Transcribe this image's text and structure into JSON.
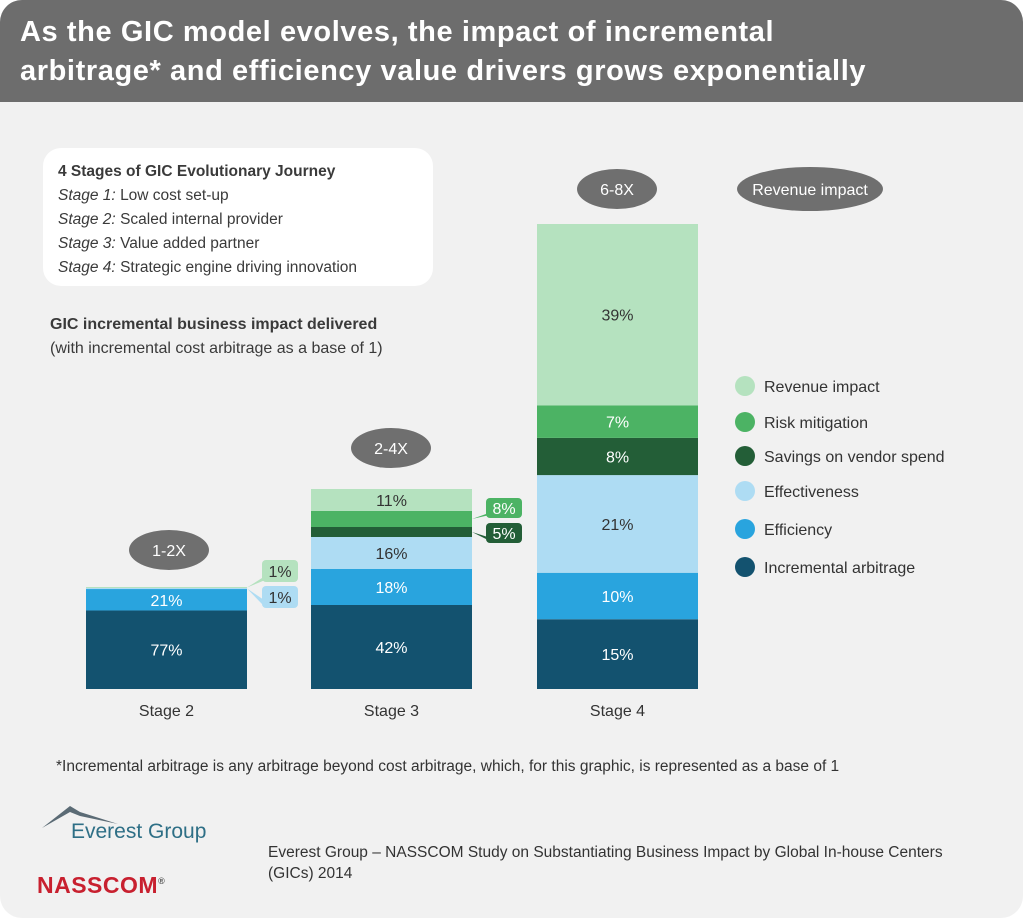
{
  "title": {
    "line1": "As the GIC model evolves, the impact of incremental",
    "line2": "arbitrage* and efficiency value drivers grows exponentially"
  },
  "stages_box": {
    "title": "4 Stages of GIC Evolutionary Journey",
    "items": [
      {
        "stage": "Stage 1:",
        "text": "Low cost set-up"
      },
      {
        "stage": "Stage 2:",
        "text": "Scaled internal provider"
      },
      {
        "stage": "Stage 3:",
        "text": "Value added partner"
      },
      {
        "stage": "Stage 4:",
        "text": "Strategic engine driving innovation"
      }
    ]
  },
  "subtitle": "GIC incremental business impact delivered",
  "subtitle_note": "(with incremental cost arbitrage as a base of 1)",
  "chart_data": {
    "type": "bar",
    "stacked": true,
    "categories": [
      "Stage 2",
      "Stage 3",
      "Stage 4"
    ],
    "multipliers": [
      "1-2X",
      "2-4X",
      "6-8X"
    ],
    "series": [
      {
        "name": "Incremental arbitrage",
        "color": "#13526f",
        "values": [
          77,
          42,
          15
        ],
        "labels": [
          "77%",
          "42%",
          "15%"
        ]
      },
      {
        "name": "Efficiency",
        "color": "#29a4de",
        "values": [
          21,
          18,
          10
        ],
        "labels": [
          "21%",
          "18%",
          "10%"
        ]
      },
      {
        "name": "Effectiveness",
        "color": "#aedcf3",
        "values": [
          1,
          16,
          21
        ],
        "labels": [
          "1%",
          "16%",
          "21%"
        ]
      },
      {
        "name": "Savings on vendor spend",
        "color": "#235e37",
        "values": [
          0,
          5,
          8
        ],
        "labels": [
          "",
          "5%",
          "8%"
        ]
      },
      {
        "name": "Risk mitigation",
        "color": "#4cb364",
        "values": [
          0,
          8,
          7
        ],
        "labels": [
          "",
          "8%",
          "7%"
        ]
      },
      {
        "name": "Revenue impact",
        "color": "#b5e2bf",
        "values": [
          1,
          11,
          39
        ],
        "labels": [
          "1%",
          "11%",
          "39%"
        ]
      }
    ],
    "label_text_colors": [
      "#ffffff",
      "#ffffff",
      "#333333",
      "#ffffff",
      "#ffffff",
      "#333333"
    ],
    "legend": [
      "Revenue impact",
      "Risk mitigation",
      "Savings on vendor spend",
      "Effectiveness",
      "Efficiency",
      "Incremental arbitrage"
    ],
    "annotation": "Revenue impact",
    "callouts": [
      {
        "label": "1%",
        "series": 5,
        "cat": 0
      },
      {
        "label": "1%",
        "series": 2,
        "cat": 0
      },
      {
        "label": "8%",
        "series": 4,
        "cat": 1
      },
      {
        "label": "5%",
        "series": 3,
        "cat": 1
      }
    ]
  },
  "footnote": "*Incremental arbitrage is any arbitrage beyond cost arbitrage, which, for this graphic, is represented as a base of 1",
  "logos": {
    "everest": "Everest Group",
    "nasscom": "NASSCOM",
    "reg": "®"
  },
  "source": "Everest Group – NASSCOM Study on Substantiating Business Impact by Global In-house Centers (GICs) 2014"
}
